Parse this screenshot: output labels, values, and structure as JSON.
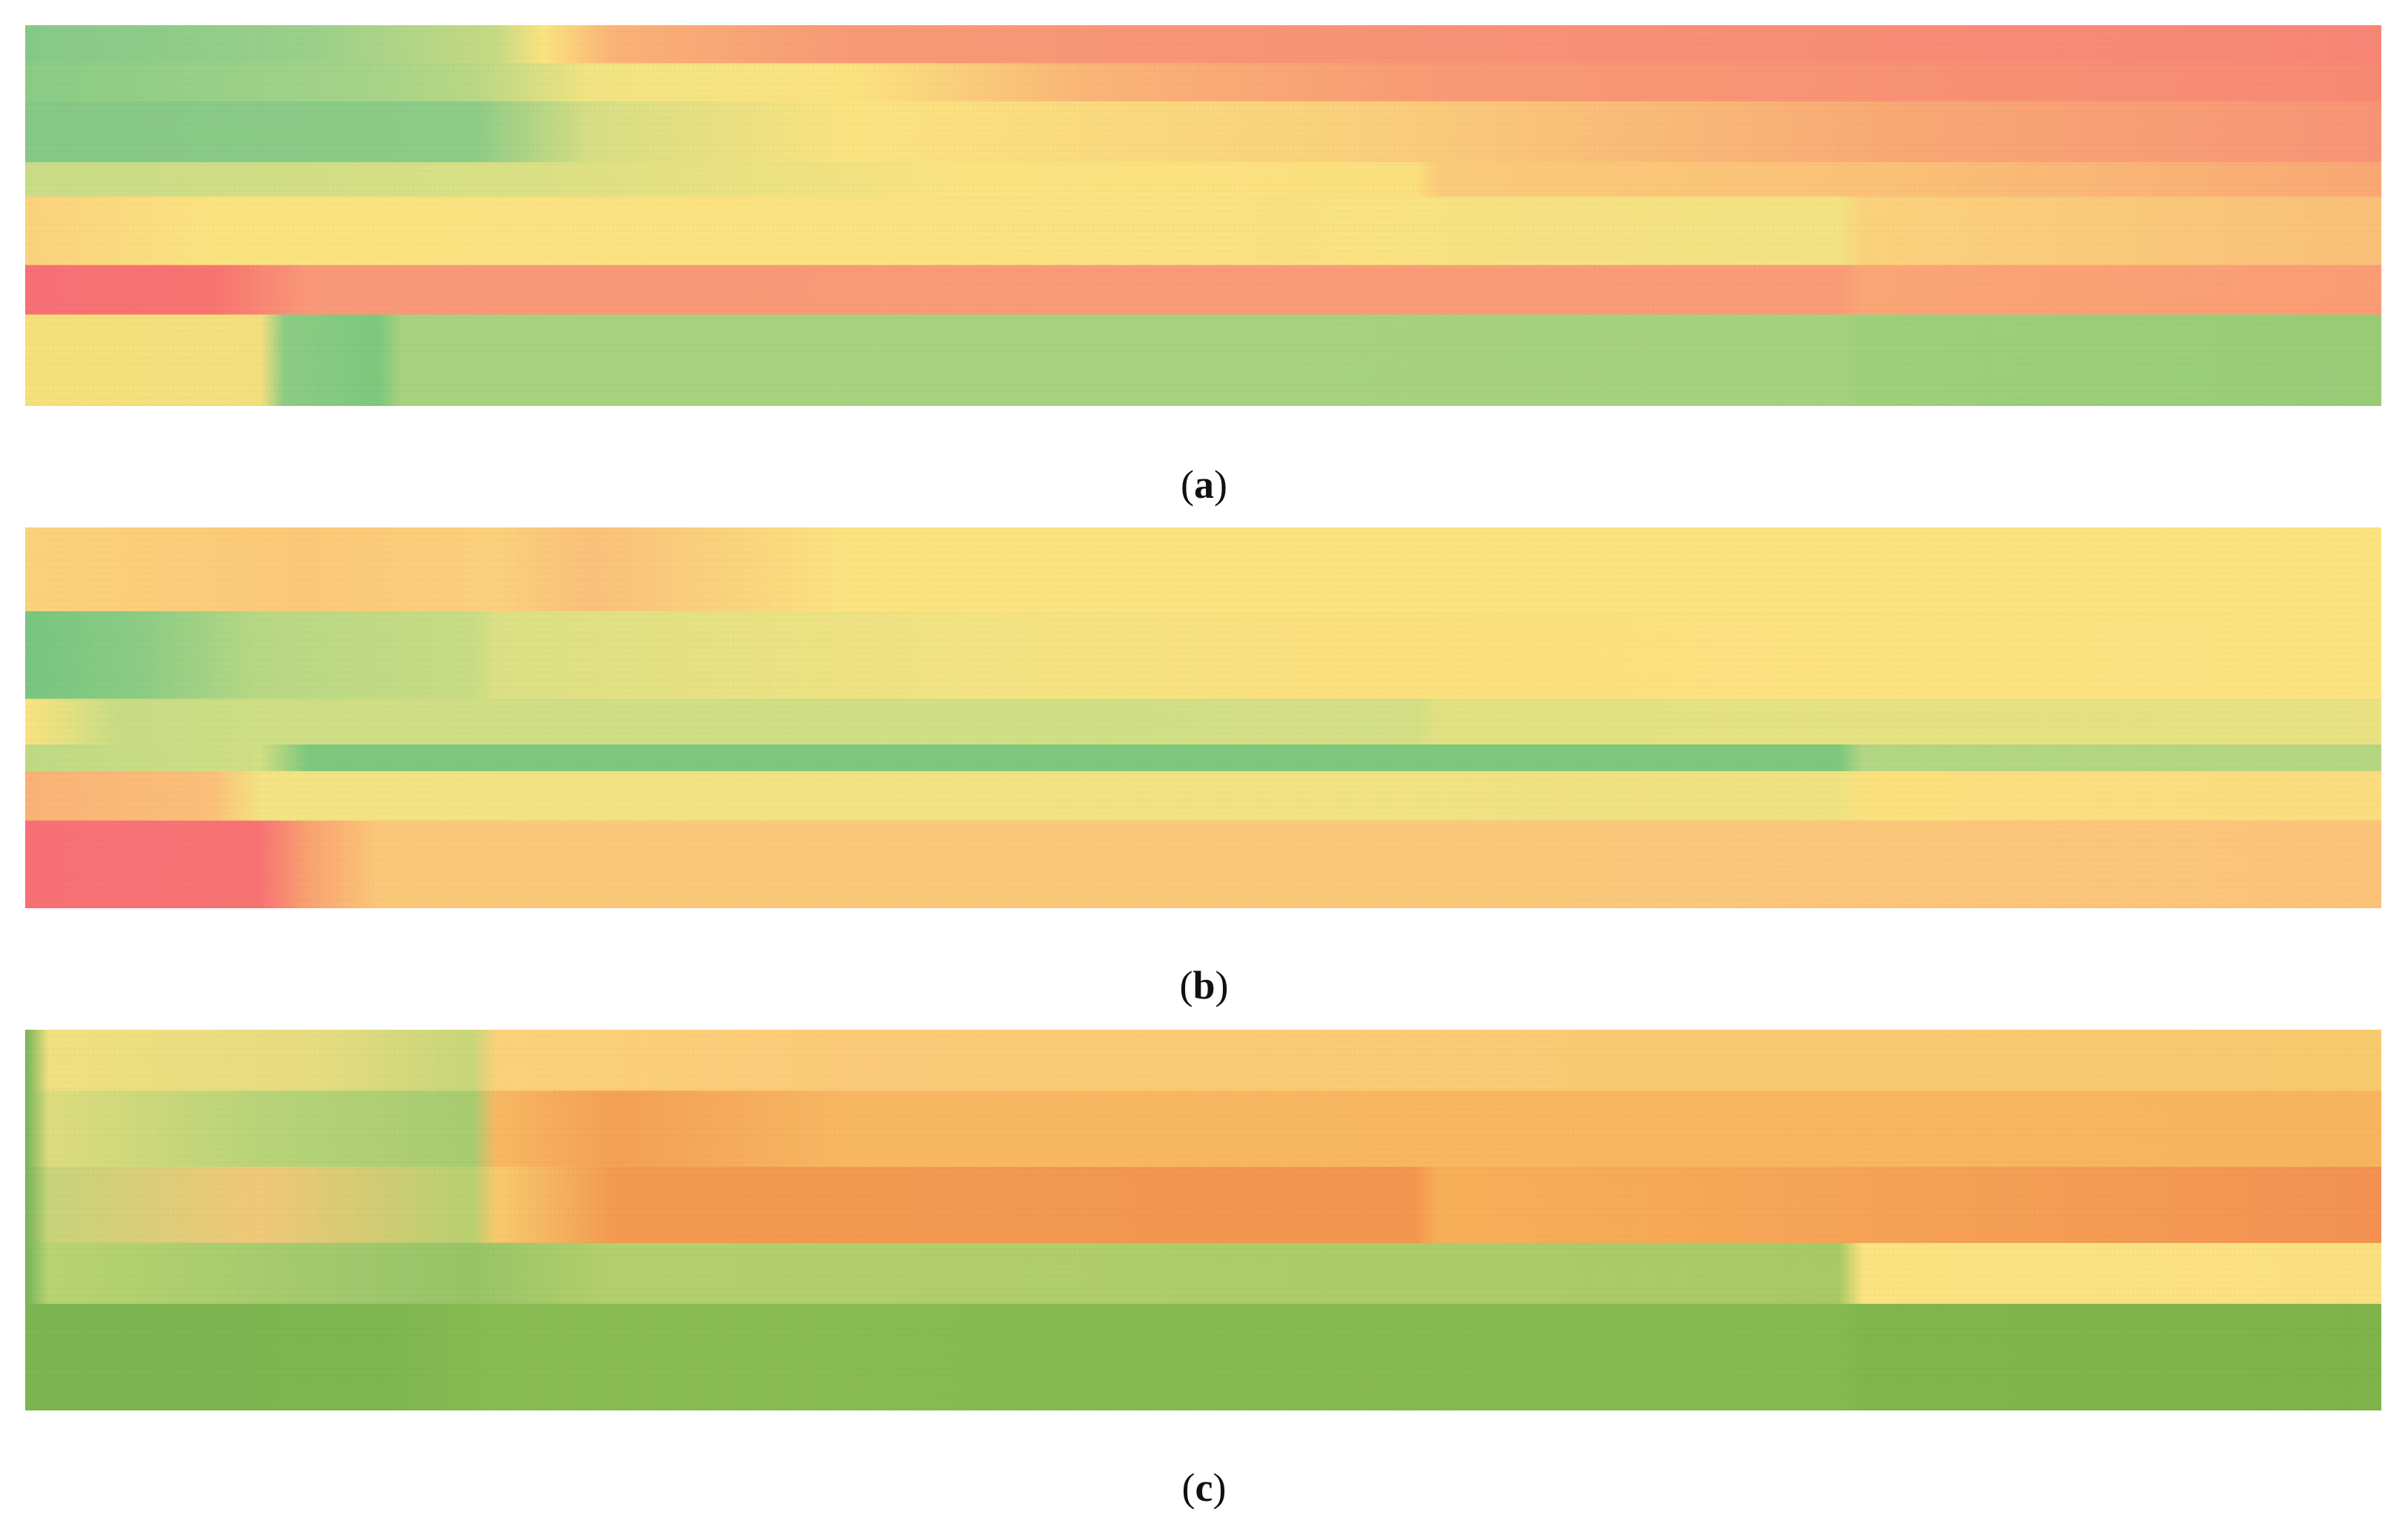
{
  "panels": [
    {
      "label_open": "(",
      "label_letter": "a",
      "label_close": ")",
      "chart_data": {
        "type": "heatmap",
        "grid": false,
        "legend": "none",
        "colors": {
          "green": "#7ec87e",
          "yellow": "#fbe380",
          "orange": "#f8a070",
          "red": "#f87070"
        },
        "bands": [
          {
            "y": [
              0.0,
              0.1
            ],
            "stops": [
              [
                0.0,
                "#86c988"
              ],
              [
                0.12,
                "#9ad08a"
              ],
              [
                0.2,
                "#c7da83"
              ],
              [
                0.22,
                "#fbe380"
              ],
              [
                0.25,
                "#fab276"
              ],
              [
                0.35,
                "#f89a76"
              ],
              [
                1.0,
                "#f88676"
              ]
            ]
          },
          {
            "y": [
              0.1,
              0.2
            ],
            "stops": [
              [
                0.0,
                "#8acc86"
              ],
              [
                0.15,
                "#a6d488"
              ],
              [
                0.19,
                "#b9d884"
              ],
              [
                0.24,
                "#f2e482"
              ],
              [
                0.35,
                "#fbe380"
              ],
              [
                0.45,
                "#fab576"
              ],
              [
                0.6,
                "#f99a74"
              ],
              [
                1.0,
                "#f88a74"
              ]
            ]
          },
          {
            "y": [
              0.2,
              0.36
            ],
            "stops": [
              [
                0.0,
                "#86c886"
              ],
              [
                0.19,
                "#8ccc86"
              ],
              [
                0.24,
                "#d7de84"
              ],
              [
                0.35,
                "#fbe380"
              ],
              [
                0.55,
                "#fad27c"
              ],
              [
                0.8,
                "#f9a874"
              ],
              [
                1.0,
                "#f89476"
              ]
            ]
          },
          {
            "y": [
              0.36,
              0.45
            ],
            "stops": [
              [
                0.0,
                "#c9dc86"
              ],
              [
                0.2,
                "#d8e084"
              ],
              [
                0.4,
                "#fbe380"
              ],
              [
                0.59,
                "#fbe07e"
              ],
              [
                0.6,
                "#fbca7a"
              ],
              [
                0.78,
                "#fbc277"
              ],
              [
                1.0,
                "#f9a874"
              ]
            ]
          },
          {
            "y": [
              0.45,
              0.63
            ],
            "stops": [
              [
                0.0,
                "#fbd27e"
              ],
              [
                0.08,
                "#fbe380"
              ],
              [
                0.5,
                "#fae181"
              ],
              [
                0.77,
                "#f3e382"
              ],
              [
                0.78,
                "#fbd27c"
              ],
              [
                1.0,
                "#fac079"
              ]
            ]
          },
          {
            "y": [
              0.63,
              0.76
            ],
            "stops": [
              [
                0.0,
                "#f87076"
              ],
              [
                0.08,
                "#f87470"
              ],
              [
                0.12,
                "#f99878"
              ],
              [
                0.77,
                "#fa9c76"
              ],
              [
                0.78,
                "#fba676"
              ],
              [
                1.0,
                "#fb9c74"
              ]
            ]
          },
          {
            "y": [
              0.76,
              1.0
            ],
            "stops": [
              [
                0.0,
                "#f6e07c"
              ],
              [
                0.1,
                "#f3e07c"
              ],
              [
                0.11,
                "#8ccc84"
              ],
              [
                0.15,
                "#7ec87e"
              ],
              [
                0.16,
                "#a8d27e"
              ],
              [
                0.77,
                "#a6d280"
              ],
              [
                0.78,
                "#9ed07a"
              ],
              [
                1.0,
                "#98cc78"
              ]
            ]
          }
        ]
      }
    },
    {
      "label_open": "(",
      "label_letter": "b",
      "label_close": ")",
      "chart_data": {
        "type": "heatmap",
        "grid": false,
        "legend": "none",
        "colors": {
          "green": "#7ec87e",
          "yellow": "#fbe380",
          "orange": "#f8a070",
          "red": "#f87070"
        },
        "bands": [
          {
            "y": [
              0.0,
              0.22
            ],
            "stops": [
              [
                0.0,
                "#fbd27c"
              ],
              [
                0.12,
                "#fbc878"
              ],
              [
                0.2,
                "#fbd07c"
              ],
              [
                0.24,
                "#fac07a"
              ],
              [
                0.35,
                "#fbe380"
              ],
              [
                1.0,
                "#fbe380"
              ]
            ]
          },
          {
            "y": [
              0.22,
              0.45
            ],
            "stops": [
              [
                0.0,
                "#78c680"
              ],
              [
                0.05,
                "#8ccc84"
              ],
              [
                0.1,
                "#b8d884"
              ],
              [
                0.19,
                "#c8dc84"
              ],
              [
                0.2,
                "#dce084"
              ],
              [
                0.4,
                "#f3e382"
              ],
              [
                0.55,
                "#fbe07e"
              ],
              [
                1.0,
                "#fbe380"
              ]
            ]
          },
          {
            "y": [
              0.45,
              0.57
            ],
            "stops": [
              [
                0.0,
                "#fbe380"
              ],
              [
                0.04,
                "#c8dc84"
              ],
              [
                0.11,
                "#cfde84"
              ],
              [
                0.59,
                "#d2df84"
              ],
              [
                0.6,
                "#e2e282"
              ],
              [
                1.0,
                "#e8e282"
              ]
            ]
          },
          {
            "y": [
              0.57,
              0.64
            ],
            "stops": [
              [
                0.0,
                "#c0da84"
              ],
              [
                0.1,
                "#d0de84"
              ],
              [
                0.12,
                "#7ec87e"
              ],
              [
                0.77,
                "#7ec87e"
              ],
              [
                0.78,
                "#b2d682"
              ],
              [
                1.0,
                "#b4d682"
              ]
            ]
          },
          {
            "y": [
              0.64,
              0.77
            ],
            "stops": [
              [
                0.0,
                "#fab276"
              ],
              [
                0.08,
                "#fbc079"
              ],
              [
                0.1,
                "#f3e382"
              ],
              [
                0.77,
                "#f0e282"
              ],
              [
                0.78,
                "#fbe07e"
              ],
              [
                1.0,
                "#fbdc7e"
              ]
            ]
          },
          {
            "y": [
              0.77,
              1.0
            ],
            "stops": [
              [
                0.0,
                "#f87076"
              ],
              [
                0.1,
                "#f87474"
              ],
              [
                0.12,
                "#f9a270"
              ],
              [
                0.15,
                "#fbc87a"
              ],
              [
                0.6,
                "#fbc87a"
              ],
              [
                1.0,
                "#fbc47a"
              ]
            ]
          }
        ]
      }
    },
    {
      "label_open": "(",
      "label_letter": "c",
      "label_close": ")",
      "chart_data": {
        "type": "heatmap",
        "grid": false,
        "legend": "none",
        "colors": {
          "green": "#7eb84e",
          "yellow": "#fbe380",
          "orange": "#f39a50",
          "red": "#f47048"
        },
        "bands": [
          {
            "y": [
              0.0,
              0.16
            ],
            "stops": [
              [
                0.0,
                "#74b45a"
              ],
              [
                0.01,
                "#f0e080"
              ],
              [
                0.12,
                "#e8dc80"
              ],
              [
                0.19,
                "#c8d67a"
              ],
              [
                0.2,
                "#fbd27c"
              ],
              [
                0.35,
                "#fbca78"
              ],
              [
                1.0,
                "#f8ca6e"
              ]
            ]
          },
          {
            "y": [
              0.16,
              0.36
            ],
            "stops": [
              [
                0.0,
                "#74b45a"
              ],
              [
                0.01,
                "#dedc7e"
              ],
              [
                0.1,
                "#b8d478"
              ],
              [
                0.19,
                "#a8cc70"
              ],
              [
                0.2,
                "#f8b862"
              ],
              [
                0.25,
                "#f4a055"
              ],
              [
                0.35,
                "#f8b862"
              ],
              [
                1.0,
                "#f7b55e"
              ]
            ]
          },
          {
            "y": [
              0.36,
              0.56
            ],
            "stops": [
              [
                0.0,
                "#74b45a"
              ],
              [
                0.01,
                "#c8d47a"
              ],
              [
                0.1,
                "#f0c878"
              ],
              [
                0.19,
                "#b8d070"
              ],
              [
                0.2,
                "#f8ca6e"
              ],
              [
                0.25,
                "#f39a50"
              ],
              [
                0.59,
                "#f39650"
              ],
              [
                0.6,
                "#f8b058"
              ],
              [
                0.9,
                "#f49a54"
              ],
              [
                1.0,
                "#f39252"
              ]
            ]
          },
          {
            "y": [
              0.56,
              0.72
            ],
            "stops": [
              [
                0.0,
                "#74b45a"
              ],
              [
                0.01,
                "#b8d470"
              ],
              [
                0.14,
                "#a0c86c"
              ],
              [
                0.19,
                "#98c466"
              ],
              [
                0.25,
                "#b4d06c"
              ],
              [
                0.77,
                "#a8ca66"
              ],
              [
                0.78,
                "#fbe380"
              ],
              [
                1.0,
                "#fbe080"
              ]
            ]
          },
          {
            "y": [
              0.72,
              1.0
            ],
            "stops": [
              [
                0.0,
                "#7cb650"
              ],
              [
                0.15,
                "#7eb650"
              ],
              [
                0.2,
                "#88bc52"
              ],
              [
                0.77,
                "#86ba50"
              ],
              [
                0.78,
                "#80b64c"
              ],
              [
                1.0,
                "#7eb44a"
              ]
            ]
          }
        ]
      }
    }
  ]
}
